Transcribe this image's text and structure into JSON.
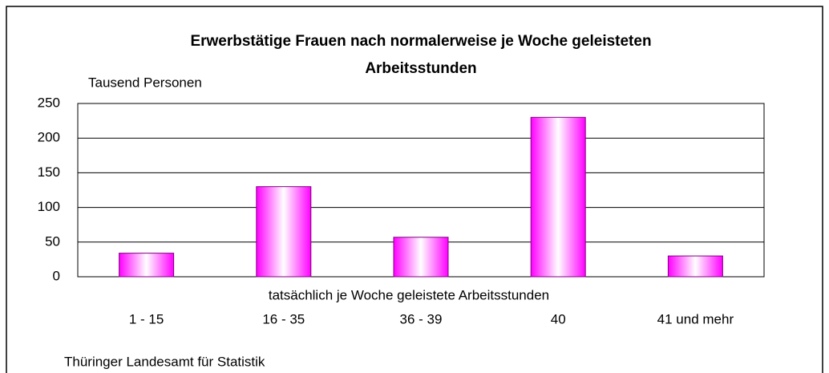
{
  "chart_data": {
    "type": "bar",
    "title": [
      "Erwerbstätige Frauen nach normalerweise je Woche geleisteten",
      "Arbeitsstunden"
    ],
    "y_label": "Tausend Personen",
    "x_label": "tatsächlich je Woche geleistete Arbeitsstunden",
    "source": "Thüringer Landesamt für Statistik",
    "categories": [
      "1 - 15",
      "16 - 35",
      "36 - 39",
      "40",
      "41 und mehr"
    ],
    "values": [
      34,
      130,
      57,
      230,
      30
    ],
    "color": "#ff00ff",
    "ylim": [
      0,
      250
    ],
    "yticks": [
      0,
      50,
      100,
      150,
      200,
      250
    ],
    "grid": true
  }
}
